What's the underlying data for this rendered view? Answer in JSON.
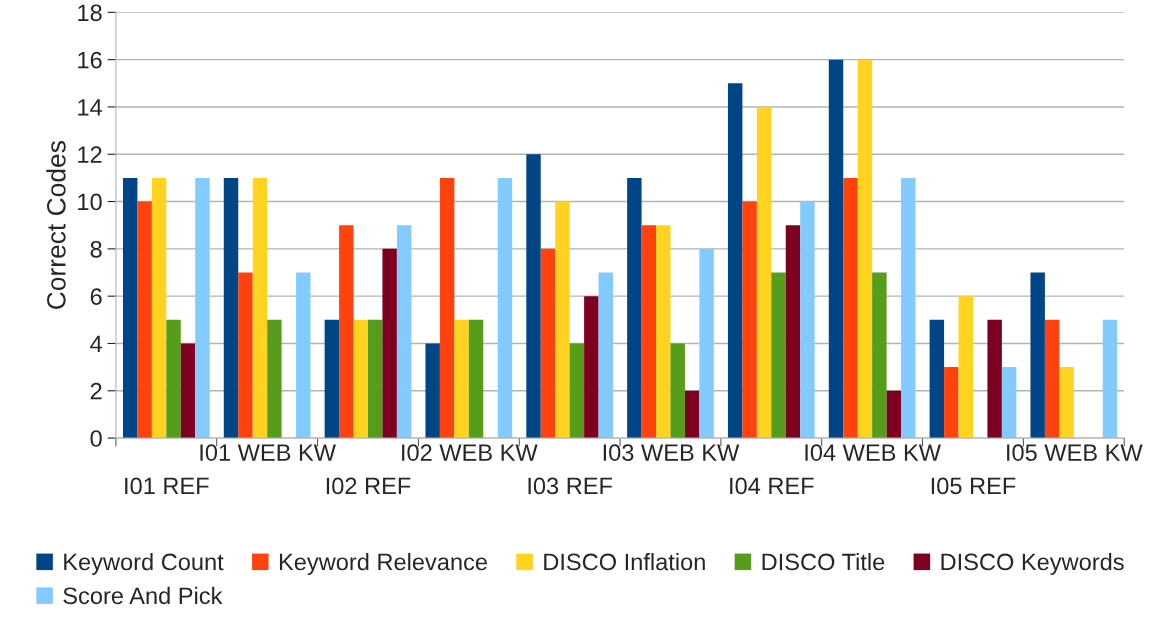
{
  "chart_data": {
    "type": "bar",
    "ylabel": "Correct Codes",
    "categories": [
      "I01 REF",
      "I01 WEB KW",
      "I02 REF",
      "I02 WEB KW",
      "I03 REF",
      "I03 WEB KW",
      "I04 REF",
      "I04 WEB KW",
      "I05 REF",
      "I05 WEB KW"
    ],
    "series": [
      {
        "name": "Keyword Count",
        "color": "#004586",
        "values": [
          11,
          11,
          5,
          4,
          12,
          11,
          15,
          16,
          5,
          7
        ]
      },
      {
        "name": "Keyword Relevance",
        "color": "#ff420e",
        "values": [
          10,
          7,
          9,
          11,
          8,
          9,
          10,
          11,
          3,
          5
        ]
      },
      {
        "name": "DISCO Inflation",
        "color": "#ffd320",
        "values": [
          11,
          11,
          5,
          5,
          10,
          9,
          14,
          16,
          6,
          3
        ]
      },
      {
        "name": "DISCO Title",
        "color": "#579d1c",
        "values": [
          5,
          5,
          5,
          5,
          4,
          4,
          7,
          7,
          0,
          0
        ]
      },
      {
        "name": "DISCO Keywords",
        "color": "#7e0021",
        "values": [
          4,
          0,
          8,
          0,
          6,
          2,
          9,
          2,
          5,
          0
        ]
      },
      {
        "name": "Score And Pick",
        "color": "#83caff",
        "values": [
          11,
          7,
          9,
          11,
          7,
          8,
          10,
          11,
          3,
          5
        ]
      }
    ],
    "ylim": [
      0,
      18
    ],
    "yticks": [
      0,
      2,
      4,
      6,
      8,
      10,
      12,
      14,
      16,
      18
    ],
    "grid": "y",
    "legend": "bottom"
  }
}
